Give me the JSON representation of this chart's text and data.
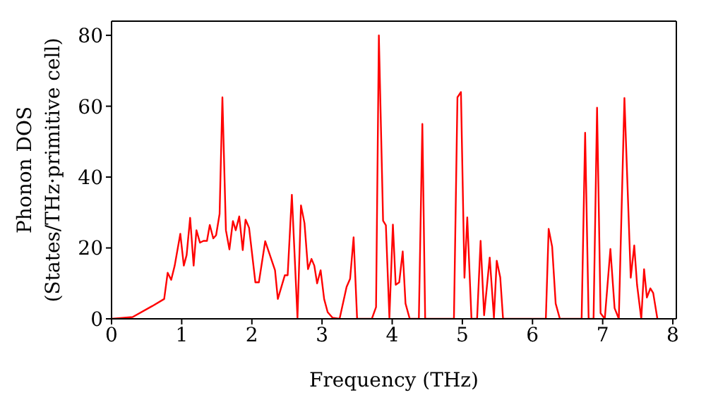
{
  "chart_data": {
    "type": "line",
    "xlabel": "Frequency (THz)",
    "ylabel": "Phonon DOS\n(States/THz·primitive cell)",
    "x": [
      0,
      0.3,
      0.58,
      0.75,
      0.8,
      0.85,
      0.9,
      0.98,
      1.03,
      1.07,
      1.12,
      1.17,
      1.21,
      1.26,
      1.31,
      1.36,
      1.4,
      1.45,
      1.49,
      1.54,
      1.58,
      1.63,
      1.68,
      1.73,
      1.77,
      1.82,
      1.87,
      1.91,
      1.96,
      2.05,
      2.1,
      2.19,
      2.33,
      2.37,
      2.47,
      2.51,
      2.57,
      2.65,
      2.7,
      2.75,
      2.8,
      2.85,
      2.89,
      2.93,
      2.98,
      3.03,
      3.08,
      3.15,
      3.25,
      3.35,
      3.4,
      3.45,
      3.5,
      3.71,
      3.77,
      3.81,
      3.87,
      3.91,
      3.96,
      4.01,
      4.05,
      4.1,
      4.15,
      4.19,
      4.25,
      4.38,
      4.43,
      4.47,
      4.88,
      4.93,
      4.98,
      5.03,
      5.07,
      5.13,
      5.21,
      5.26,
      5.31,
      5.39,
      5.45,
      5.49,
      5.54,
      5.58,
      6.19,
      6.23,
      6.28,
      6.33,
      6.39,
      6.7,
      6.75,
      6.8,
      6.87,
      6.92,
      6.97,
      7.03,
      7.11,
      7.17,
      7.23,
      7.31,
      7.4,
      7.45,
      7.49,
      7.55,
      7.59,
      7.63,
      7.68,
      7.72,
      7.78
    ],
    "series": [
      {
        "color": "#ff0000",
        "values": [
          0,
          0.5,
          3.6,
          5.6,
          13,
          11,
          15,
          24,
          15,
          18,
          28.5,
          15,
          25,
          21.5,
          22,
          22,
          26.5,
          22.7,
          23.6,
          29.6,
          62.5,
          25,
          19.6,
          27.6,
          25,
          28.9,
          19.4,
          28,
          25.7,
          10.3,
          10.3,
          21.9,
          13.7,
          5.6,
          12.3,
          12.3,
          35,
          0.3,
          32,
          27,
          14,
          16.9,
          15,
          10,
          13.7,
          5.6,
          1.9,
          0.3,
          0,
          9,
          11.3,
          23,
          0,
          0,
          3.3,
          80,
          27.7,
          26.4,
          0.3,
          26.6,
          9.6,
          10.3,
          19,
          4.3,
          0,
          0,
          55,
          0,
          0,
          62.5,
          64,
          11.6,
          28.6,
          0,
          0,
          22,
          1,
          17.3,
          0.3,
          16.4,
          11.7,
          0,
          0,
          25.4,
          20.3,
          4.3,
          0,
          0,
          52.5,
          0,
          0,
          59.6,
          1.6,
          0,
          19.7,
          3,
          0,
          62.3,
          11.6,
          20.7,
          9.6,
          0,
          14,
          6,
          8.6,
          7.3,
          0
        ]
      }
    ],
    "xlim": [
      0,
      8.05
    ],
    "xticks": [
      0,
      1,
      2,
      3,
      4,
      5,
      6,
      7,
      8
    ],
    "ylim": [
      0,
      84
    ],
    "yticks": [
      0,
      20,
      40,
      60,
      80
    ],
    "marker": "none",
    "line_style": "solid"
  }
}
